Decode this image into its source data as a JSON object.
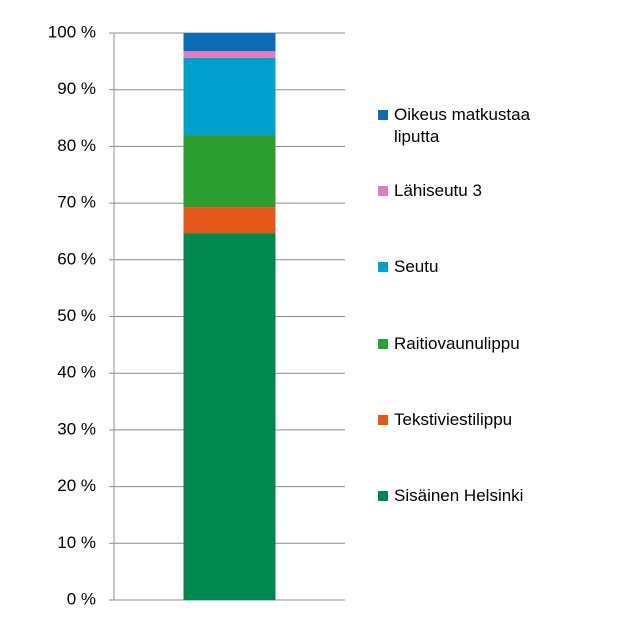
{
  "chart_data": {
    "type": "stacked_bar_100",
    "categories": [
      null
    ],
    "series": [
      {
        "name": "Sisäinen Helsinki",
        "color": "#00874f",
        "values": [
          64.7
        ]
      },
      {
        "name": "Tekstiviestilippu",
        "color": "#e5561a",
        "values": [
          4.6
        ]
      },
      {
        "name": "Raitiovaunulippu",
        "color": "#2e9e32",
        "values": [
          12.7
        ]
      },
      {
        "name": "Seutu",
        "color": "#00a0cc",
        "values": [
          13.6
        ]
      },
      {
        "name": "Lähiseutu 3",
        "color": "#e07cc0",
        "values": [
          1.2
        ]
      },
      {
        "name": "Oikeus matkustaa liputta",
        "color": "#0a6cb4",
        "values": [
          3.2
        ]
      }
    ],
    "ylim": [
      0,
      100
    ],
    "yticks": [
      {
        "value": 0,
        "label": "0 %"
      },
      {
        "value": 10,
        "label": "10 %"
      },
      {
        "value": 20,
        "label": "20 %"
      },
      {
        "value": 30,
        "label": "30 %"
      },
      {
        "value": 40,
        "label": "40 %"
      },
      {
        "value": 50,
        "label": "50 %"
      },
      {
        "value": 60,
        "label": "60 %"
      },
      {
        "value": 70,
        "label": "70 %"
      },
      {
        "value": 80,
        "label": "80 %"
      },
      {
        "value": 90,
        "label": "90 %"
      },
      {
        "value": 100,
        "label": "100 %"
      }
    ],
    "grid": true,
    "legend": "right"
  }
}
